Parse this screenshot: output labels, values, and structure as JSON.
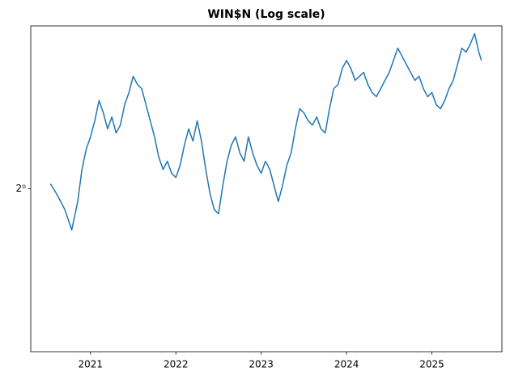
{
  "chart_data": {
    "type": "line",
    "title": "WIN$N (Log scale)",
    "yscale": "log",
    "logbase": 2,
    "x": [
      2020.53,
      2020.6,
      2020.7,
      2020.78,
      2020.85,
      2020.9,
      2020.95,
      2021.0,
      2021.05,
      2021.1,
      2021.15,
      2021.2,
      2021.25,
      2021.3,
      2021.35,
      2021.4,
      2021.45,
      2021.5,
      2021.55,
      2021.6,
      2021.65,
      2021.7,
      2021.75,
      2021.8,
      2021.85,
      2021.9,
      2021.95,
      2022.0,
      2022.05,
      2022.1,
      2022.15,
      2022.2,
      2022.25,
      2022.3,
      2022.35,
      2022.4,
      2022.45,
      2022.5,
      2022.55,
      2022.6,
      2022.65,
      2022.7,
      2022.75,
      2022.8,
      2022.85,
      2022.9,
      2022.95,
      2023.0,
      2023.05,
      2023.1,
      2023.15,
      2023.2,
      2023.25,
      2023.3,
      2023.35,
      2023.4,
      2023.45,
      2023.5,
      2023.55,
      2023.6,
      2023.65,
      2023.7,
      2023.75,
      2023.8,
      2023.85,
      2023.9,
      2023.95,
      2024.0,
      2024.05,
      2024.1,
      2024.15,
      2024.2,
      2024.25,
      2024.3,
      2024.35,
      2024.4,
      2024.45,
      2024.5,
      2024.55,
      2024.6,
      2024.65,
      2024.7,
      2024.75,
      2024.8,
      2024.85,
      2024.9,
      2024.95,
      2025.0,
      2025.05,
      2025.1,
      2025.15,
      2025.2,
      2025.25,
      2025.3,
      2025.35,
      2025.4,
      2025.45,
      2025.5,
      2025.55,
      2025.58
    ],
    "series": [
      {
        "color": "#1f77b4",
        "values": [
          1.017,
          0.984,
          0.931,
          0.869,
          0.957,
          1.068,
          1.144,
          1.193,
          1.26,
          1.35,
          1.295,
          1.226,
          1.277,
          1.209,
          1.242,
          1.331,
          1.387,
          1.466,
          1.426,
          1.406,
          1.331,
          1.26,
          1.193,
          1.113,
          1.068,
          1.098,
          1.054,
          1.039,
          1.083,
          1.16,
          1.226,
          1.176,
          1.26,
          1.176,
          1.068,
          0.984,
          0.931,
          0.918,
          1.011,
          1.098,
          1.16,
          1.193,
          1.129,
          1.098,
          1.193,
          1.129,
          1.083,
          1.054,
          1.098,
          1.068,
          1.011,
          0.957,
          1.011,
          1.083,
          1.129,
          1.226,
          1.313,
          1.295,
          1.26,
          1.242,
          1.277,
          1.226,
          1.209,
          1.313,
          1.406,
          1.426,
          1.506,
          1.548,
          1.506,
          1.446,
          1.466,
          1.486,
          1.426,
          1.387,
          1.368,
          1.406,
          1.446,
          1.486,
          1.548,
          1.614,
          1.57,
          1.527,
          1.486,
          1.446,
          1.466,
          1.406,
          1.368,
          1.387,
          1.331,
          1.313,
          1.35,
          1.406,
          1.446,
          1.527,
          1.614,
          1.592,
          1.636,
          1.696,
          1.592,
          1.548
        ]
      }
    ],
    "xlim": [
      2020.3,
      2025.82
    ],
    "xticks": [
      2021,
      2022,
      2023,
      2024,
      2025
    ],
    "ylim": [
      0.574,
      1.741
    ],
    "yticks": [
      {
        "value": 1,
        "label": "2⁰"
      }
    ]
  }
}
